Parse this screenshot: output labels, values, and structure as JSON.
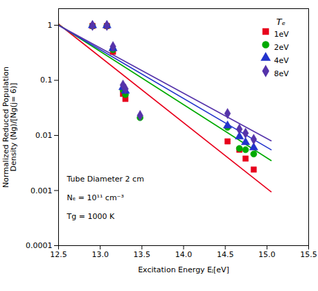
{
  "chart_data": {
    "type": "scatter",
    "xlabel": "Excitation Energy Eⱼ[eV]",
    "ylabel": "Normalized Reduced Population\nDensity (Ng)/[Ng(j= 6)]",
    "legend_title": "Tₑ",
    "annotations": [
      "Tube Diameter 2 cm",
      "Nₑ = 10¹¹ cm⁻³",
      "Tg = 1000 K"
    ],
    "log": "y",
    "grid": false,
    "legend": "upper right",
    "xlim": [
      12.5,
      15.5
    ],
    "ylim": [
      0.0001,
      2.0
    ],
    "xticks": [
      12.5,
      {
        "value": 13,
        "label": "13.0"
      },
      13.5,
      {
        "value": 14,
        "label": "14.0"
      },
      14.5,
      {
        "value": 15,
        "label": "15.0"
      },
      15.5
    ],
    "yticks": [
      0.0001,
      0.001,
      0.01,
      0.1,
      1
    ],
    "series": [
      {
        "name": "1eV",
        "color": "#e8001c",
        "marker": "square",
        "x": [
          12.907,
          13.08,
          13.153,
          13.273,
          13.302,
          14.527,
          14.669,
          14.743,
          14.841
        ],
        "values": [
          0.97,
          0.97,
          0.33,
          0.057,
          0.046,
          0.0078,
          0.0055,
          0.0038,
          0.0024
        ],
        "fit_x": [
          12.5,
          15.05
        ],
        "fit_values": [
          1.05,
          0.00095
        ]
      },
      {
        "name": "2eV",
        "color": "#00aa00",
        "marker": "circle",
        "x": [
          12.907,
          13.08,
          13.153,
          13.273,
          13.302,
          13.478,
          14.527,
          14.669,
          14.743,
          14.841
        ],
        "values": [
          0.97,
          0.97,
          0.36,
          0.067,
          0.055,
          0.021,
          0.014,
          0.0058,
          0.0055,
          0.0046
        ],
        "fit_x": [
          12.5,
          15.05
        ],
        "fit_values": [
          1.02,
          0.0035
        ]
      },
      {
        "name": "4eV",
        "color": "#2233cc",
        "marker": "triangle",
        "x": [
          12.907,
          13.08,
          13.153,
          13.273,
          13.302,
          14.527,
          14.669,
          14.743,
          14.841
        ],
        "values": [
          0.99,
          0.99,
          0.38,
          0.075,
          0.064,
          0.015,
          0.0095,
          0.0075,
          0.006
        ],
        "fit_x": [
          12.5,
          15.05
        ],
        "fit_values": [
          1.0,
          0.0055
        ]
      },
      {
        "name": "8eV",
        "color": "#5533aa",
        "marker": "diamond",
        "x": [
          12.907,
          13.08,
          13.153,
          13.273,
          13.302,
          13.478,
          14.527,
          14.669,
          14.743,
          14.841
        ],
        "values": [
          0.99,
          0.99,
          0.41,
          0.082,
          0.07,
          0.023,
          0.025,
          0.013,
          0.011,
          0.0085
        ],
        "fit_x": [
          12.5,
          15.05
        ],
        "fit_values": [
          1.0,
          0.008
        ]
      }
    ]
  }
}
